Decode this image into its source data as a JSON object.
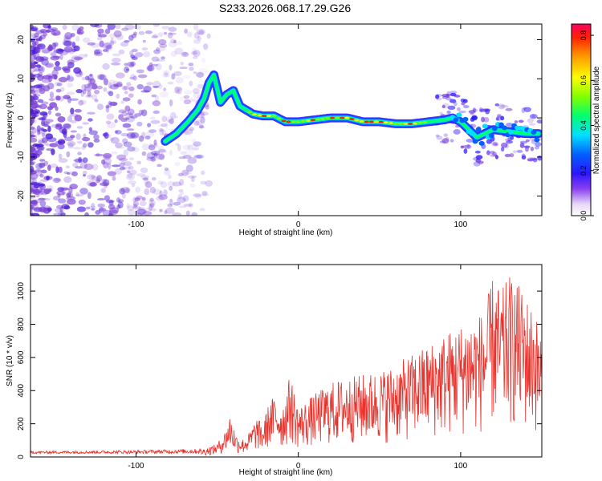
{
  "title": "S233.2026.068.17.29.G26",
  "colors": {
    "snr_line": "#e8322c",
    "axis": "#000000",
    "noise": "#7a3fd6"
  },
  "chart_data": [
    {
      "type": "heatmap",
      "xlabel": "Height of straight line (km)",
      "ylabel": "Frequency (Hz)",
      "xlim": [
        -165,
        150
      ],
      "ylim": [
        -25,
        24
      ],
      "xticks": [
        -100,
        0,
        100
      ],
      "yticks": [
        -20,
        -10,
        0,
        10,
        20
      ],
      "colorbar": {
        "label": "Normalized spectral amplitude",
        "range": [
          0.0,
          0.85
        ],
        "ticks": [
          "0.0",
          "0.2",
          "0.4",
          "0.6",
          "0.8"
        ]
      },
      "ridge": {
        "description_points_x_km": [
          -82,
          -75,
          -68,
          -62,
          -58,
          -55,
          -52,
          -48,
          -44,
          -40,
          -36,
          -32,
          -28,
          -22,
          -15,
          -8,
          0,
          10,
          20,
          30,
          40,
          50,
          60,
          70,
          80,
          90,
          95,
          100,
          105,
          110,
          115,
          120,
          130,
          140,
          148
        ],
        "frequency_hz": [
          -6,
          -4,
          -1,
          2,
          5,
          9,
          11,
          4,
          6,
          7,
          3,
          2,
          1,
          0.5,
          0.5,
          -1,
          -1,
          -0.5,
          0,
          0,
          -1,
          -1,
          -1.5,
          -1.5,
          -1,
          -0.5,
          0,
          -1,
          -3,
          -5,
          -4,
          -3,
          -3.5,
          -4,
          -4
        ]
      }
    },
    {
      "type": "line",
      "xlabel": "Height of straight line (km)",
      "ylabel": "SNR (10 * v/v)",
      "xlim": [
        -165,
        150
      ],
      "ylim": [
        0,
        1160
      ],
      "xticks": [
        -100,
        0,
        100
      ],
      "yticks": [
        0,
        200,
        400,
        600,
        800,
        1000
      ],
      "envelope": {
        "x": [
          -165,
          -100,
          -60,
          -50,
          -45,
          -42,
          -38,
          -34,
          -30,
          -26,
          -22,
          -18,
          -14,
          -10,
          -5,
          0,
          10,
          20,
          30,
          40,
          50,
          60,
          70,
          80,
          90,
          100,
          105,
          110,
          115,
          120,
          125,
          130,
          135,
          140,
          145,
          150
        ],
        "y": [
          30,
          35,
          45,
          80,
          160,
          260,
          130,
          110,
          150,
          240,
          200,
          330,
          380,
          300,
          500,
          300,
          380,
          450,
          480,
          500,
          520,
          560,
          620,
          680,
          750,
          800,
          850,
          850,
          900,
          1100,
          1000,
          1100,
          1050,
          980,
          900,
          750
        ]
      }
    }
  ]
}
